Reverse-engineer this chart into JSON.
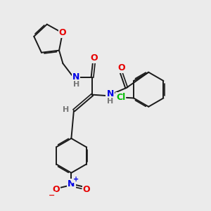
{
  "bg_color": "#ebebeb",
  "bond_color": "#1a1a1a",
  "atom_colors": {
    "O": "#e60000",
    "N": "#0000e6",
    "Cl": "#00bb00",
    "H": "#777777",
    "C": "#1a1a1a"
  },
  "lw": 1.4,
  "dlw": 1.2,
  "doff": 0.055
}
